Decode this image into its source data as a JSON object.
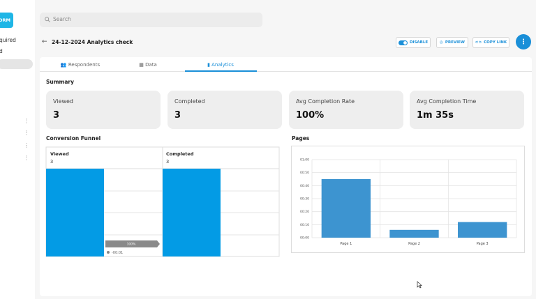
{
  "sidebar": {
    "button": "ORM",
    "items": [
      "quired",
      "d"
    ]
  },
  "search": {
    "placeholder": "Search"
  },
  "header": {
    "title": "24-12-2024 Analytics check",
    "buttons": [
      "DISABLE",
      "PREVIEW",
      "COPY LINK"
    ]
  },
  "tabs": [
    "Respondents",
    "Data",
    "Analytics"
  ],
  "summary": {
    "title": "Summary",
    "cards": [
      {
        "label": "Viewed",
        "value": 3
      },
      {
        "label": "Completed",
        "value": 3
      },
      {
        "label": "Avg Completion Rate",
        "value": "100%"
      },
      {
        "label": "Avg Completion Time",
        "value": "1m 35s"
      }
    ]
  },
  "funnel": {
    "title": "Conversion Funnel",
    "stages": [
      {
        "label": "Viewed",
        "value": 3
      },
      {
        "label": "Completed",
        "value": 3
      }
    ],
    "rate": "100%",
    "time": "-00:01"
  },
  "chart_data": {
    "type": "bar",
    "title": "Pages",
    "categories": [
      "Page 1",
      "Page 2",
      "Page 3"
    ],
    "values": [
      45,
      6,
      12
    ],
    "color": "#3d94d0",
    "ylim": [
      0,
      60
    ],
    "yticks": [
      {
        "value": 0,
        "label": "00:00"
      },
      {
        "value": 10,
        "label": "00:10"
      },
      {
        "value": 20,
        "label": "00:20"
      },
      {
        "value": 30,
        "label": "00:30"
      },
      {
        "value": 40,
        "label": "00:40"
      },
      {
        "value": 50,
        "label": "00:50"
      },
      {
        "value": 60,
        "label": "01:00"
      }
    ],
    "grid": true
  }
}
